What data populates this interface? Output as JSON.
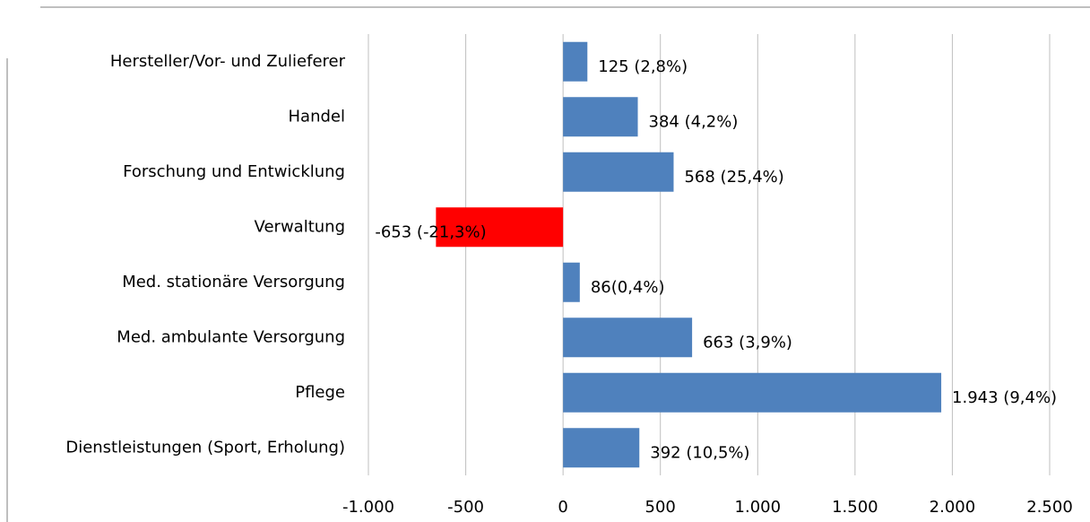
{
  "chart_data": {
    "type": "barh",
    "categories": [
      "Hersteller/Vor- und Zulieferer",
      "Handel",
      "Forschung und Entwicklung",
      "Verwaltung",
      "Med. stationäre Versorgung",
      "Med. ambulante Versorgung",
      "Pflege",
      "Dienstleistungen (Sport, Erholung)"
    ],
    "values": [
      125,
      384,
      568,
      -653,
      86,
      663,
      1943,
      392
    ],
    "value_labels": [
      "125  (2,8%)",
      "384  (4,2%)",
      "568  (25,4%)",
      "-653  (-21,3%)",
      "86(0,4%)",
      "663  (3,9%)",
      "1.943 (9,4%)",
      "392 (10,5%)"
    ],
    "colors": [
      "#4f81bd",
      "#4f81bd",
      "#4f81bd",
      "#ff0000",
      "#4f81bd",
      "#4f81bd",
      "#4f81bd",
      "#4f81bd"
    ],
    "xlim": [
      -1000,
      2500
    ],
    "xticks": [
      {
        "value": -1000,
        "label": "-1.000"
      },
      -500,
      0,
      500,
      {
        "value": 1000,
        "label": "1.000"
      },
      {
        "value": 1500,
        "label": "1.500"
      },
      {
        "value": 2000,
        "label": "2.000"
      },
      {
        "value": 2500,
        "label": "2.500"
      }
    ],
    "grid": true
  }
}
